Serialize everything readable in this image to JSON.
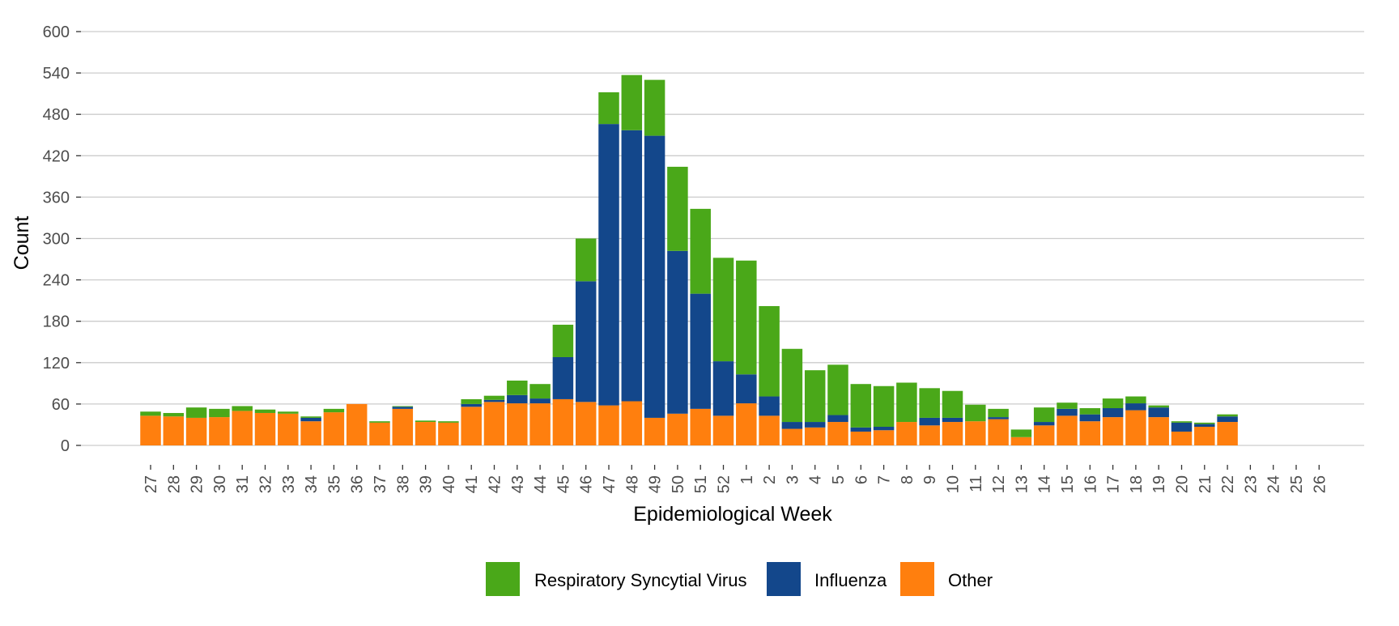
{
  "chart_data": {
    "type": "bar",
    "stacked": true,
    "xlabel": "Epidemiological Week",
    "ylabel": "Count",
    "ylim": [
      0,
      600
    ],
    "yticks": [
      0,
      60,
      120,
      180,
      240,
      300,
      360,
      420,
      480,
      540,
      600
    ],
    "grid": "horizontal major",
    "legend_position": "bottom",
    "categories": [
      "27",
      "28",
      "29",
      "30",
      "31",
      "32",
      "33",
      "34",
      "35",
      "36",
      "37",
      "38",
      "39",
      "40",
      "41",
      "42",
      "43",
      "44",
      "45",
      "46",
      "47",
      "48",
      "49",
      "50",
      "51",
      "52",
      "1",
      "2",
      "3",
      "4",
      "5",
      "6",
      "7",
      "8",
      "9",
      "10",
      "11",
      "12",
      "13",
      "14",
      "15",
      "16",
      "17",
      "18",
      "19",
      "20",
      "21",
      "22",
      "23",
      "24",
      "25",
      "26"
    ],
    "series": [
      {
        "name": "Other",
        "color": "#ff7f0e",
        "values": [
          43,
          42,
          40,
          41,
          50,
          47,
          46,
          35,
          48,
          60,
          33,
          53,
          34,
          33,
          56,
          63,
          61,
          61,
          67,
          63,
          58,
          64,
          40,
          46,
          53,
          43,
          61,
          43,
          24,
          26,
          34,
          20,
          22,
          34,
          29,
          34,
          35,
          38,
          12,
          29,
          43,
          35,
          41,
          51,
          41,
          20,
          27,
          34,
          0,
          0,
          0,
          0
        ]
      },
      {
        "name": "Influenza",
        "color": "#13478b",
        "values": [
          0,
          0,
          0,
          0,
          0,
          0,
          0,
          5,
          0,
          0,
          0,
          3,
          0,
          0,
          4,
          3,
          12,
          7,
          61,
          175,
          408,
          393,
          409,
          236,
          167,
          79,
          42,
          28,
          10,
          8,
          10,
          6,
          5,
          0,
          11,
          6,
          0,
          3,
          0,
          5,
          10,
          10,
          13,
          10,
          14,
          13,
          4,
          8,
          0,
          0,
          0,
          0
        ]
      },
      {
        "name": "Respiratory Syncytial Virus",
        "color": "#4aa819",
        "values": [
          6,
          5,
          15,
          12,
          7,
          5,
          3,
          2,
          5,
          0,
          2,
          1,
          2,
          2,
          7,
          6,
          21,
          21,
          47,
          62,
          46,
          80,
          81,
          122,
          123,
          150,
          165,
          131,
          106,
          75,
          73,
          63,
          59,
          57,
          43,
          39,
          24,
          12,
          11,
          21,
          9,
          9,
          14,
          10,
          3,
          2,
          2,
          3,
          0,
          0,
          0,
          0
        ]
      }
    ],
    "legend": [
      "Respiratory Syncytial Virus",
      "Influenza",
      "Other"
    ]
  }
}
